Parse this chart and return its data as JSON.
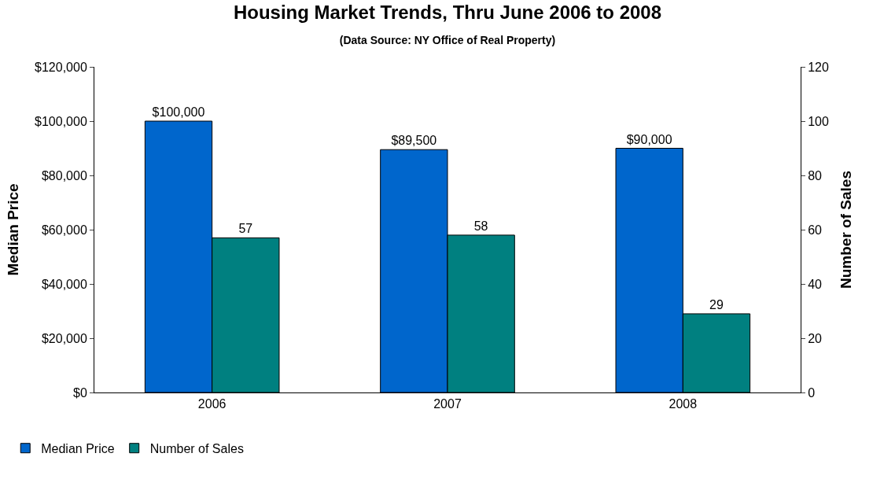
{
  "chart_data": {
    "type": "bar",
    "title": "Housing Market Trends, Thru June 2006 to 2008",
    "subtitle": "(Data Source: NY Office of Real Property)",
    "ylabel": "Median Price",
    "y2label": "Number of Sales",
    "categories": [
      "2006",
      "2007",
      "2008"
    ],
    "series": [
      {
        "name": "Median Price",
        "color": "#0066cc",
        "values": [
          100000,
          89500,
          90000
        ],
        "value_labels": [
          "$100,000",
          "$89,500",
          "$90,000"
        ]
      },
      {
        "name": "Number of Sales",
        "color": "#008080",
        "values": [
          57,
          58,
          29
        ],
        "axis": "y2",
        "value_labels": [
          "57",
          "58",
          "29"
        ]
      }
    ],
    "ylim": [
      0,
      120000
    ],
    "yticks": [
      {
        "value": 0,
        "label": "$0"
      },
      {
        "value": 20000,
        "label": "$20,000"
      },
      {
        "value": 40000,
        "label": "$40,000"
      },
      {
        "value": 60000,
        "label": "$60,000"
      },
      {
        "value": 80000,
        "label": "$80,000"
      },
      {
        "value": 100000,
        "label": "$100,000"
      },
      {
        "value": 120000,
        "label": "$120,000"
      }
    ],
    "y2lim": [
      0,
      120
    ],
    "y2ticks": [
      0,
      20,
      40,
      60,
      80,
      100,
      120
    ],
    "legend": "bottom left"
  }
}
